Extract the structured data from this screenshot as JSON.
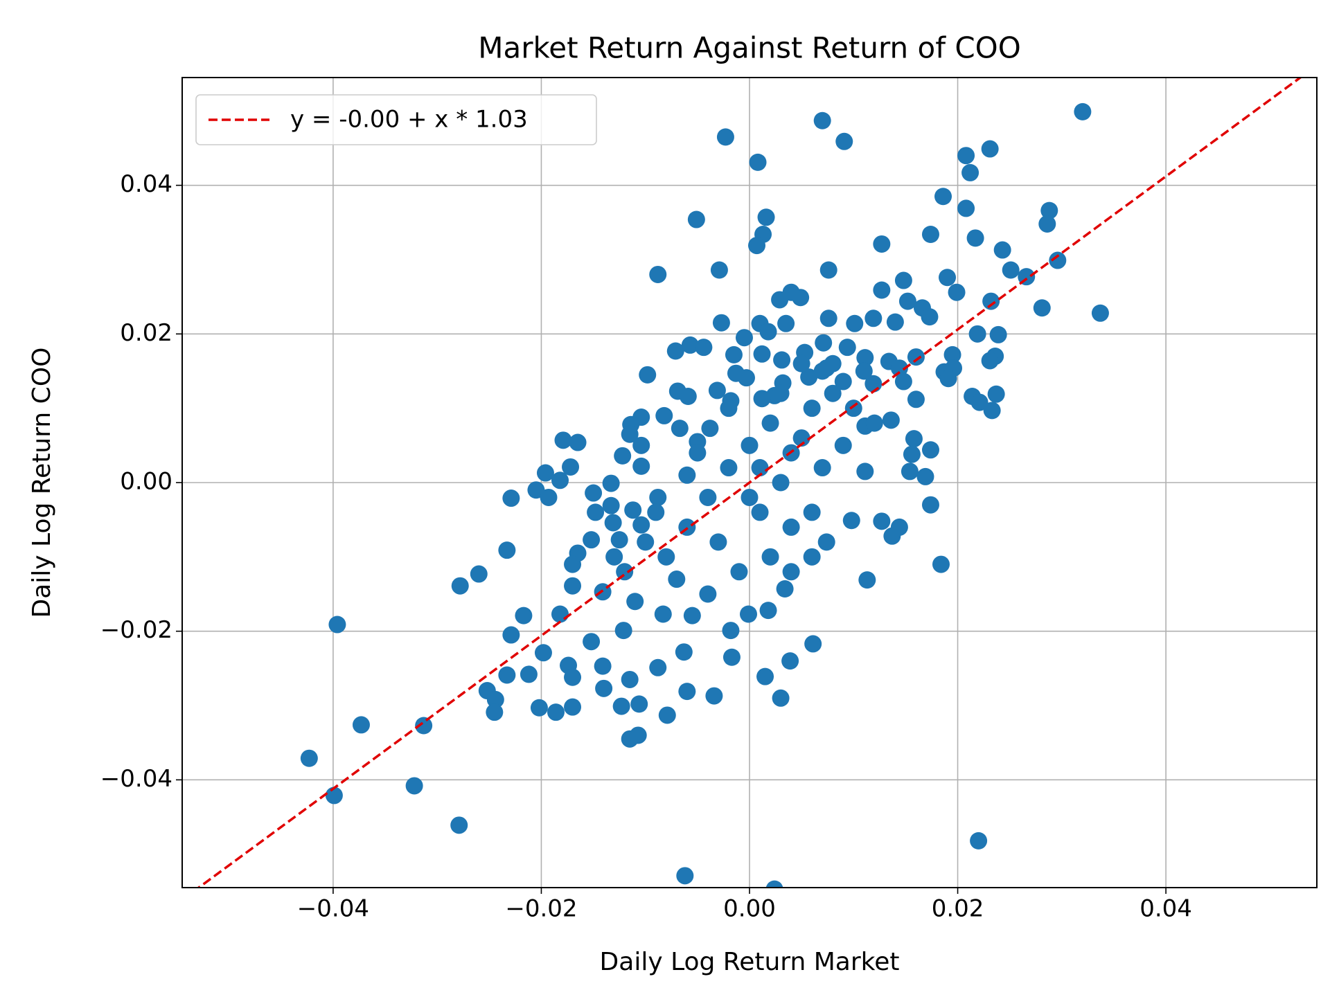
{
  "chart_data": {
    "type": "scatter",
    "title": "Market Return Against Return of COO",
    "x_label": "Daily Log Return Market",
    "y_label": "Daily Log Return COO",
    "xlim": [
      -0.0545,
      0.0545
    ],
    "ylim": [
      -0.0545,
      0.0545
    ],
    "xticks": [
      {
        "value": -0.04,
        "label": "−0.04"
      },
      {
        "value": -0.02,
        "label": "−0.02"
      },
      {
        "value": 0,
        "label": "0.00"
      },
      0.02,
      0.04
    ],
    "yticks": [
      {
        "value": -0.04,
        "label": "−0.04"
      },
      {
        "value": -0.02,
        "label": "−0.02"
      },
      {
        "value": 0,
        "label": "0.00"
      },
      0.02,
      0.04
    ],
    "grid": true,
    "legend_position": "upper-left",
    "points": {
      "color": "#1f77b4",
      "x": [
        0.032,
        0.007,
        -0.0023,
        0.0091,
        0.0231,
        0.0208,
        0.0212,
        0.0008,
        0.0186,
        0.0208,
        0.0288,
        -0.0051,
        0.0016,
        0.0286,
        0.0013,
        0.0174,
        0.0217,
        0.0007,
        0.0127,
        0.0243,
        0.0296,
        0.0251,
        -0.0088,
        -0.0029,
        0.0076,
        0.0266,
        0.019,
        0.0148,
        0.0127,
        0.004,
        0.0029,
        0.0049,
        0.0199,
        0.0232,
        0.0281,
        0.0337,
        0.0166,
        0.0152,
        -0.0027,
        0.001,
        0.0035,
        0.0076,
        0.0101,
        0.0119,
        0.014,
        0.0173,
        0.0219,
        0.0239,
        0.0018,
        -0.0005,
        0.0071,
        0.0094,
        -0.0057,
        -0.0044,
        -0.0071,
        -0.0015,
        0.0012,
        0.0195,
        0.0236,
        0.0231,
        0.0031,
        0.0053,
        0.0111,
        0.0134,
        0.016,
        0.0144,
        0.0196,
        0.0187,
        -0.0013,
        -0.0003,
        0.0191,
        -0.0098,
        0.0032,
        0.0057,
        0.0074,
        0.009,
        0.0119,
        0.0148,
        -0.0031,
        -0.0069,
        0.0024,
        0.0012,
        0.0214,
        0.0237,
        0.0221,
        0.0233,
        0.016,
        -0.0059,
        -0.0018,
        -0.0104,
        -0.0082,
        -0.0114,
        -0.0067,
        -0.0038,
        0.0136,
        0.0111,
        -0.0115,
        -0.005,
        -0.0179,
        -0.0165,
        0.0158,
        -0.0122,
        -0.0104,
        0.0174,
        0.0156,
        -0.0172,
        -0.0104,
        0.0154,
        0.0111,
        -0.0196,
        0.0169,
        -0.0182,
        -0.0133,
        -0.0205,
        -0.0193,
        -0.0229,
        -0.015,
        -0.0088,
        0.0174,
        -0.0148,
        -0.0133,
        0.0098,
        0.0127,
        0.0144,
        0.0137,
        -0.0131,
        -0.0104,
        -0.0112,
        -0.0152,
        -0.0125,
        0.0074,
        -0.0233,
        -0.0165,
        -0.026,
        -0.017,
        0.0184,
        -0.0278,
        -0.017,
        0.0113,
        -0.0141,
        0.0034,
        -0.0182,
        -0.0217,
        -0.0396,
        -0.0083,
        -0.0055,
        -0.0001,
        0.0018,
        -0.0018,
        -0.0229,
        -0.0121,
        0.0061,
        -0.0152,
        -0.0198,
        -0.0063,
        -0.0017,
        0.0039,
        -0.0174,
        -0.0141,
        -0.0233,
        -0.0088,
        -0.0212,
        0.0015,
        -0.0115,
        -0.017,
        -0.0252,
        -0.006,
        -0.014,
        -0.0034,
        0.003,
        -0.0244,
        -0.0106,
        -0.0202,
        -0.017,
        -0.0123,
        -0.0186,
        -0.0245,
        -0.0079,
        -0.0313,
        -0.0373,
        -0.0115,
        -0.0107,
        -0.0423,
        -0.0322,
        -0.0399,
        -0.0279,
        0.022,
        -0.0062,
        0.0024,
        0.0,
        0.002,
        -0.002,
        0.004,
        0.006,
        0.008,
        -0.004,
        -0.006,
        -0.008,
        0.001,
        0.003,
        0.005,
        -0.003,
        0.007,
        -0.001,
        0.002,
        0.006,
        0.009,
        -0.007,
        -0.01,
        0.004,
        -0.005,
        0.01,
        0.012,
        -0.009,
        0.0,
        0.003,
        -0.002,
        0.005,
        0.007,
        -0.012,
        -0.011,
        0.001,
        -0.004,
        0.004,
        0.008,
        -0.006,
        0.006,
        0.011,
        -0.013
      ],
      "y": [
        0.0499,
        0.0487,
        0.0465,
        0.0459,
        0.0449,
        0.044,
        0.0417,
        0.0431,
        0.0385,
        0.0369,
        0.0366,
        0.0354,
        0.0357,
        0.0348,
        0.0334,
        0.0334,
        0.0329,
        0.0319,
        0.0321,
        0.0313,
        0.0299,
        0.0286,
        0.028,
        0.0286,
        0.0286,
        0.0277,
        0.0276,
        0.0272,
        0.0259,
        0.0256,
        0.0246,
        0.0249,
        0.0256,
        0.0244,
        0.0235,
        0.0228,
        0.0235,
        0.0244,
        0.0215,
        0.0214,
        0.0214,
        0.0221,
        0.0214,
        0.0221,
        0.0216,
        0.0223,
        0.02,
        0.0199,
        0.0203,
        0.0195,
        0.0188,
        0.0182,
        0.0185,
        0.0182,
        0.0177,
        0.0172,
        0.0173,
        0.0172,
        0.017,
        0.0164,
        0.0165,
        0.0175,
        0.0168,
        0.0163,
        0.0169,
        0.0154,
        0.0154,
        0.0149,
        0.0147,
        0.0141,
        0.014,
        0.0145,
        0.0134,
        0.0142,
        0.0154,
        0.0136,
        0.0133,
        0.0136,
        0.0124,
        0.0123,
        0.0117,
        0.0113,
        0.0116,
        0.0119,
        0.0108,
        0.0097,
        0.0112,
        0.0116,
        0.011,
        0.0088,
        0.009,
        0.0078,
        0.0073,
        0.0073,
        0.0084,
        0.0076,
        0.0065,
        0.0055,
        0.0057,
        0.0054,
        0.0059,
        0.0036,
        0.005,
        0.0044,
        0.0038,
        0.0021,
        0.0022,
        0.0015,
        0.0015,
        0.0013,
        0.0008,
        0.0003,
        -0.0001,
        -0.001,
        -0.002,
        -0.0021,
        -0.0014,
        -0.002,
        -0.003,
        -0.004,
        -0.0031,
        -0.0051,
        -0.0052,
        -0.006,
        -0.0072,
        -0.0054,
        -0.0057,
        -0.0037,
        -0.0077,
        -0.0077,
        -0.008,
        -0.0091,
        -0.0095,
        -0.0123,
        -0.011,
        -0.011,
        -0.0139,
        -0.0139,
        -0.0131,
        -0.0147,
        -0.0143,
        -0.0177,
        -0.0179,
        -0.0191,
        -0.0177,
        -0.0179,
        -0.0177,
        -0.0172,
        -0.0199,
        -0.0205,
        -0.0199,
        -0.0217,
        -0.0214,
        -0.0229,
        -0.0228,
        -0.0235,
        -0.024,
        -0.0246,
        -0.0247,
        -0.0259,
        -0.0249,
        -0.0258,
        -0.0261,
        -0.0265,
        -0.0262,
        -0.028,
        -0.0281,
        -0.0277,
        -0.0287,
        -0.029,
        -0.0292,
        -0.0298,
        -0.0303,
        -0.0302,
        -0.0301,
        -0.0309,
        -0.0309,
        -0.0313,
        -0.0327,
        -0.0326,
        -0.0345,
        -0.034,
        -0.0371,
        -0.0408,
        -0.0421,
        -0.0461,
        -0.0482,
        -0.0529,
        -0.0547,
        0.005,
        0.008,
        0.002,
        0.004,
        0.01,
        0.012,
        -0.002,
        -0.006,
        -0.01,
        -0.004,
        0.0,
        0.006,
        -0.008,
        0.015,
        -0.012,
        -0.01,
        -0.004,
        0.005,
        -0.013,
        -0.008,
        -0.006,
        0.004,
        0.01,
        0.008,
        -0.004,
        -0.002,
        0.012,
        0.01,
        0.016,
        0.002,
        -0.012,
        -0.016,
        0.002,
        -0.015,
        -0.012,
        0.016,
        0.001,
        -0.01,
        0.015,
        -0.01
      ]
    },
    "fit": {
      "label": "y = -0.00 + x * 1.03",
      "intercept": 0,
      "slope": 1.03,
      "color": "#e00000"
    }
  }
}
